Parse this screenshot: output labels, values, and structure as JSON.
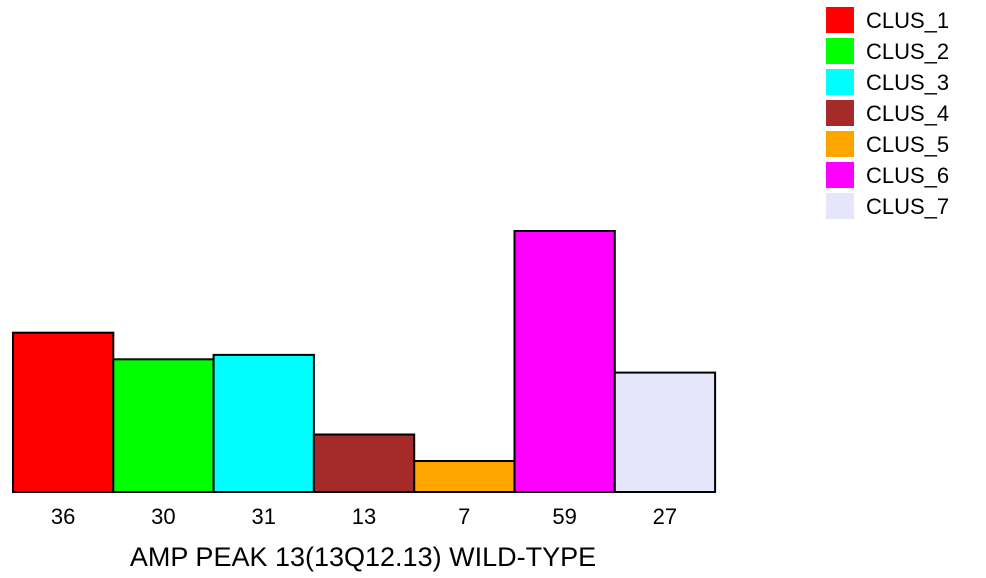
{
  "chart_data": {
    "type": "bar",
    "title": "",
    "xlabel": "AMP PEAK 13(13Q12.13) WILD-TYPE",
    "ylabel": "",
    "ylim": [
      0,
      59
    ],
    "categories": [
      "CLUS_1",
      "CLUS_2",
      "CLUS_3",
      "CLUS_4",
      "CLUS_5",
      "CLUS_6",
      "CLUS_7"
    ],
    "values": [
      36,
      30,
      31,
      13,
      7,
      59,
      27
    ],
    "data_labels": [
      "36",
      "30",
      "31",
      "13",
      "7",
      "59",
      "27"
    ],
    "colors": [
      "#ff0000",
      "#00ff00",
      "#00ffff",
      "#a52a2a",
      "#ffa500",
      "#ff00ff",
      "#e6e6fa"
    ],
    "legend": {
      "placement": "top-right",
      "entries": [
        "CLUS_1",
        "CLUS_2",
        "CLUS_3",
        "CLUS_4",
        "CLUS_5",
        "CLUS_6",
        "CLUS_7"
      ]
    },
    "grid": false,
    "bar_outline_color": "#000000"
  }
}
